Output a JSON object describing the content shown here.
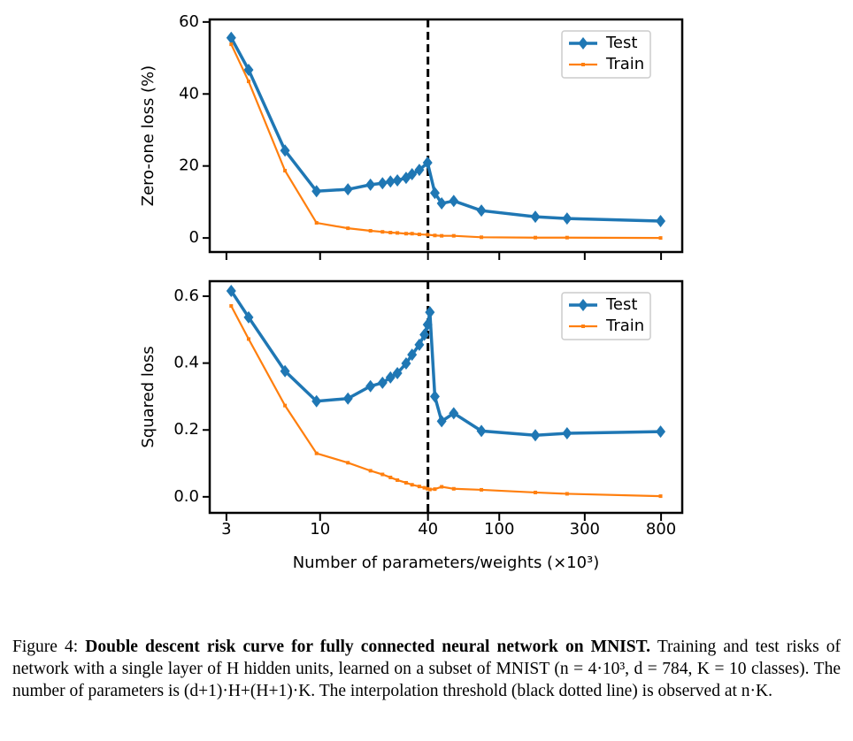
{
  "chart_data": [
    {
      "type": "line",
      "ylabel": "Zero-one loss (%)",
      "xscale": "log",
      "xlim": [
        2.42,
        1050
      ],
      "ylim": [
        -3.9,
        60.7
      ],
      "xticks": [
        3,
        10,
        40,
        100,
        300,
        800
      ],
      "yticks": [
        0,
        20,
        40,
        60
      ],
      "vline": 40,
      "legend": "upper right",
      "x": [
        3.19,
        3.99,
        6.37,
        9.55,
        14.3,
        19.1,
        22.3,
        24.7,
        27.0,
        30.2,
        32.6,
        35.8,
        39.8,
        43.7,
        47.7,
        55.7,
        79.5,
        159,
        239,
        795
      ],
      "series": [
        {
          "name": "Test",
          "color": "#1f77b4",
          "values": [
            55.6,
            46.7,
            24.3,
            13.0,
            13.5,
            14.8,
            15.2,
            15.7,
            16.0,
            16.7,
            17.7,
            18.9,
            20.9,
            12.5,
            9.6,
            10.3,
            7.6,
            5.9,
            5.4,
            4.7
          ]
        },
        {
          "name": "Train",
          "color": "#ff7f0e",
          "values": [
            53.8,
            43.5,
            18.7,
            4.2,
            2.7,
            2.0,
            1.7,
            1.5,
            1.4,
            1.2,
            1.2,
            1.0,
            0.9,
            0.7,
            0.6,
            0.6,
            0.2,
            0.1,
            0.1,
            0.0
          ]
        }
      ]
    },
    {
      "type": "line",
      "ylabel": "Squared loss",
      "xlabel": "Number of parameters/weights (×10³)",
      "xscale": "log",
      "xlim": [
        2.42,
        1050
      ],
      "ylim": [
        -0.048,
        0.645
      ],
      "xticks": [
        3,
        10,
        40,
        100,
        300,
        800
      ],
      "yticks": [
        {
          "value": 0,
          "label": "0.0"
        },
        0.2,
        0.4,
        0.6
      ],
      "vline": 40,
      "legend": "upper right",
      "x": [
        3.19,
        3.99,
        6.37,
        9.55,
        14.3,
        19.1,
        22.3,
        24.7,
        27.0,
        30.2,
        32.6,
        35.8,
        38.2,
        39.8,
        41.0,
        43.7,
        47.7,
        55.7,
        79.5,
        159,
        239,
        795
      ],
      "series": [
        {
          "name": "Test",
          "color": "#1f77b4",
          "values": [
            0.616,
            0.537,
            0.376,
            0.286,
            0.294,
            0.331,
            0.341,
            0.357,
            0.37,
            0.399,
            0.425,
            0.455,
            0.485,
            0.515,
            0.552,
            0.3,
            0.226,
            0.25,
            0.197,
            0.184,
            0.19,
            0.195
          ]
        },
        {
          "name": "Train",
          "color": "#ff7f0e",
          "values": [
            0.571,
            0.472,
            0.273,
            0.13,
            0.102,
            0.078,
            0.067,
            0.058,
            0.05,
            0.042,
            0.036,
            0.031,
            0.027,
            0.024,
            0.022,
            0.023,
            0.03,
            0.024,
            0.021,
            0.013,
            0.009,
            0.002
          ]
        }
      ]
    }
  ],
  "caption": {
    "label": "Figure 4:",
    "title": "Double descent risk curve for fully connected neural network on MNIST.",
    "text": "Training and test risks of network with a single layer of H hidden units, learned on a subset of MNIST (n = 4·10³, d = 784, K = 10 classes). The number of parameters is (d+1)·H+(H+1)·K. The interpolation threshold (black dotted line) is observed at n·K."
  }
}
